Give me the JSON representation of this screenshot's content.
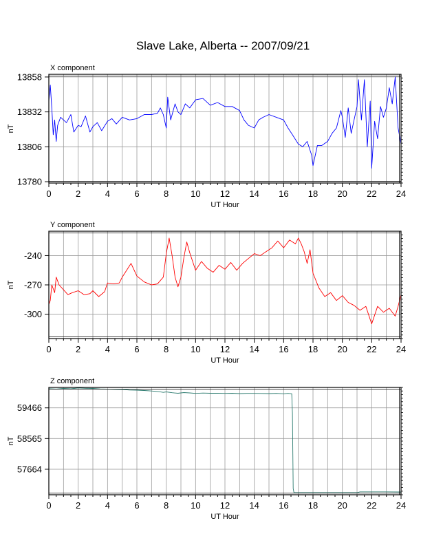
{
  "title": "Slave Lake, Alberta -- 2007/09/21",
  "chart_data": [
    {
      "type": "line",
      "title": "X component",
      "xlabel": "UT Hour",
      "ylabel": "nT",
      "xlim": [
        0,
        24
      ],
      "ylim": [
        13779,
        13860
      ],
      "xticks": [
        "0",
        "2",
        "4",
        "6",
        "8",
        "10",
        "12",
        "14",
        "16",
        "18",
        "20",
        "22",
        "24"
      ],
      "yticks": [
        13780,
        13806,
        13832,
        13858
      ],
      "ytick_labels": [
        "13780",
        "13806",
        "13832",
        "13858"
      ],
      "grid": true,
      "color": "#0000ff",
      "series": [
        {
          "x": [
            0,
            0.1,
            0.2,
            0.3,
            0.4,
            0.5,
            0.6,
            0.8,
            1,
            1.2,
            1.5,
            1.7,
            2,
            2.2,
            2.5,
            2.8,
            3,
            3.3,
            3.6,
            4,
            4.3,
            4.6,
            5,
            5.5,
            6,
            6.5,
            7,
            7.4,
            7.6,
            7.8,
            8,
            8.1,
            8.3,
            8.6,
            8.8,
            9,
            9.3,
            9.6,
            10,
            10.5,
            11,
            11.5,
            12,
            12.5,
            13,
            13.3,
            13.6,
            14,
            14.3,
            14.6,
            15,
            15.5,
            16,
            16.3,
            16.6,
            17,
            17.3,
            17.6,
            17.9,
            18,
            18.3,
            18.6,
            19,
            19.3,
            19.6,
            19.9,
            20,
            20.2,
            20.4,
            20.6,
            20.8,
            21,
            21.1,
            21.3,
            21.5,
            21.7,
            21.9,
            22,
            22.2,
            22.4,
            22.6,
            22.8,
            23,
            23.2,
            23.4,
            23.6,
            23.8,
            24
          ],
          "y": [
            13840,
            13852,
            13835,
            13815,
            13826,
            13810,
            13822,
            13828,
            13826,
            13824,
            13830,
            13817,
            13822,
            13821,
            13829,
            13817,
            13821,
            13824,
            13818,
            13825,
            13827,
            13823,
            13828,
            13826,
            13827,
            13830,
            13830,
            13831,
            13835,
            13830,
            13820,
            13843,
            13826,
            13838,
            13832,
            13830,
            13838,
            13835,
            13841,
            13842,
            13837,
            13839,
            13836,
            13836,
            13833,
            13826,
            13822,
            13820,
            13826,
            13828,
            13830,
            13828,
            13826,
            13820,
            13815,
            13808,
            13806,
            13810,
            13800,
            13792,
            13807,
            13807,
            13810,
            13816,
            13820,
            13833,
            13828,
            13813,
            13835,
            13816,
            13826,
            13836,
            13856,
            13826,
            13856,
            13806,
            13840,
            13790,
            13825,
            13812,
            13836,
            13828,
            13835,
            13850,
            13838,
            13858,
            13820,
            13808
          ]
        }
      ]
    },
    {
      "type": "line",
      "title": "Y component",
      "xlabel": "UT Hour",
      "ylabel": "nT",
      "xlim": [
        0,
        24
      ],
      "ylim": [
        -325,
        -215
      ],
      "xticks": [
        "0",
        "2",
        "4",
        "6",
        "8",
        "10",
        "12",
        "14",
        "16",
        "18",
        "20",
        "22",
        "24"
      ],
      "yticks": [
        -300,
        -270,
        -240
      ],
      "ytick_labels": [
        "-300",
        "-270",
        "-240"
      ],
      "grid": true,
      "color": "#ff0000",
      "series": [
        {
          "x": [
            0,
            0.1,
            0.2,
            0.4,
            0.5,
            0.7,
            1,
            1.3,
            1.6,
            2,
            2.4,
            2.8,
            3,
            3.4,
            3.8,
            4,
            4.4,
            4.8,
            5,
            5.3,
            5.6,
            6,
            6.5,
            7,
            7.4,
            7.8,
            8,
            8.2,
            8.4,
            8.6,
            8.8,
            9,
            9.2,
            9.4,
            9.6,
            10,
            10.4,
            10.8,
            11.2,
            11.6,
            12,
            12.4,
            12.8,
            13.2,
            13.6,
            14,
            14.4,
            14.8,
            15.2,
            15.6,
            16,
            16.4,
            16.8,
            17,
            17.2,
            17.4,
            17.6,
            17.8,
            18,
            18.4,
            18.8,
            19.2,
            19.6,
            20,
            20.4,
            20.8,
            21.2,
            21.6,
            22,
            22.4,
            22.8,
            23.2,
            23.6,
            23.8,
            24
          ],
          "y": [
            -290,
            -286,
            -270,
            -278,
            -262,
            -270,
            -275,
            -280,
            -278,
            -276,
            -280,
            -279,
            -276,
            -282,
            -277,
            -268,
            -269,
            -268,
            -262,
            -255,
            -248,
            -261,
            -267,
            -270,
            -269,
            -262,
            -238,
            -222,
            -240,
            -262,
            -272,
            -262,
            -242,
            -226,
            -237,
            -255,
            -246,
            -253,
            -257,
            -250,
            -254,
            -247,
            -255,
            -248,
            -243,
            -238,
            -240,
            -236,
            -232,
            -225,
            -232,
            -224,
            -228,
            -222,
            -228,
            -236,
            -248,
            -234,
            -258,
            -273,
            -282,
            -278,
            -286,
            -281,
            -288,
            -291,
            -296,
            -292,
            -310,
            -292,
            -298,
            -294,
            -302,
            -292,
            -280
          ]
        }
      ]
    },
    {
      "type": "line",
      "title": "Z component",
      "xlabel": "UT Hour",
      "ylabel": "nT",
      "xlim": [
        0,
        24
      ],
      "ylim": [
        56915,
        60066
      ],
      "xticks": [
        "0",
        "2",
        "4",
        "6",
        "8",
        "10",
        "12",
        "14",
        "16",
        "18",
        "20",
        "22",
        "24"
      ],
      "yticks": [
        57664,
        58565,
        59466
      ],
      "ytick_labels": [
        "57664",
        "58565",
        "59466"
      ],
      "grid": true,
      "color": "#2a7a6e",
      "series": [
        {
          "x": [
            0,
            0.5,
            1,
            1.5,
            2,
            2.5,
            3,
            3.5,
            4,
            4.5,
            5,
            5.5,
            6,
            6.5,
            7,
            7.5,
            7.8,
            8,
            8.4,
            8.8,
            9.2,
            9.6,
            10,
            10.5,
            11,
            11.5,
            12,
            12.5,
            13,
            13.5,
            14,
            14.5,
            15,
            15.5,
            16,
            16.3,
            16.55,
            16.6,
            16.62,
            16.65,
            16.7,
            17,
            18,
            19,
            20,
            21,
            21.2,
            22,
            23,
            24
          ],
          "y": [
            60030,
            60020,
            60035,
            60025,
            60050,
            60040,
            60035,
            60022,
            60018,
            60010,
            60005,
            59990,
            59985,
            59975,
            59960,
            59940,
            59920,
            59935,
            59910,
            59895,
            59915,
            59905,
            59890,
            59900,
            59895,
            59895,
            59890,
            59895,
            59885,
            59890,
            59890,
            59888,
            59885,
            59890,
            59880,
            59890,
            59880,
            59300,
            58300,
            57100,
            56980,
            56975,
            56975,
            56975,
            56975,
            56975,
            57000,
            57000,
            57000,
            56995
          ]
        }
      ]
    }
  ]
}
